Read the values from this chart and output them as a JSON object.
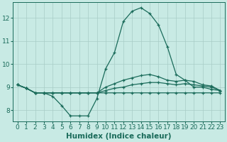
{
  "xlabel": "Humidex (Indice chaleur)",
  "background_color": "#c8eae4",
  "grid_color": "#a8ccc6",
  "line_color": "#1a6b5a",
  "xlim": [
    -0.5,
    23.5
  ],
  "ylim": [
    7.5,
    12.7
  ],
  "yticks": [
    8,
    9,
    10,
    11,
    12
  ],
  "xticks": [
    0,
    1,
    2,
    3,
    4,
    5,
    6,
    7,
    8,
    9,
    10,
    11,
    12,
    13,
    14,
    15,
    16,
    17,
    18,
    19,
    20,
    21,
    22,
    23
  ],
  "series": [
    [
      9.1,
      8.95,
      8.75,
      8.75,
      8.6,
      8.2,
      7.75,
      7.75,
      7.75,
      8.5,
      9.8,
      10.5,
      11.85,
      12.3,
      12.45,
      12.2,
      11.7,
      10.75,
      9.55,
      9.3,
      9.0,
      9.0,
      8.9,
      8.85
    ],
    [
      9.1,
      8.95,
      8.75,
      8.75,
      8.75,
      8.75,
      8.75,
      8.75,
      8.75,
      8.75,
      8.75,
      8.75,
      8.75,
      8.75,
      8.75,
      8.75,
      8.75,
      8.75,
      8.75,
      8.75,
      8.75,
      8.75,
      8.75,
      8.75
    ],
    [
      9.1,
      8.95,
      8.75,
      8.75,
      8.75,
      8.75,
      8.75,
      8.75,
      8.75,
      8.75,
      8.85,
      8.95,
      9.0,
      9.1,
      9.15,
      9.2,
      9.2,
      9.15,
      9.1,
      9.15,
      9.1,
      9.05,
      9.0,
      8.85
    ],
    [
      9.1,
      8.95,
      8.75,
      8.75,
      8.75,
      8.75,
      8.75,
      8.75,
      8.75,
      8.75,
      9.0,
      9.15,
      9.3,
      9.4,
      9.5,
      9.55,
      9.45,
      9.3,
      9.25,
      9.3,
      9.25,
      9.1,
      9.05,
      8.85
    ]
  ],
  "marker": "+",
  "markersize": 3.5,
  "markeredgewidth": 0.9,
  "linewidth": 0.9,
  "fontsize_ticks": 6.5,
  "fontsize_xlabel": 7.5
}
